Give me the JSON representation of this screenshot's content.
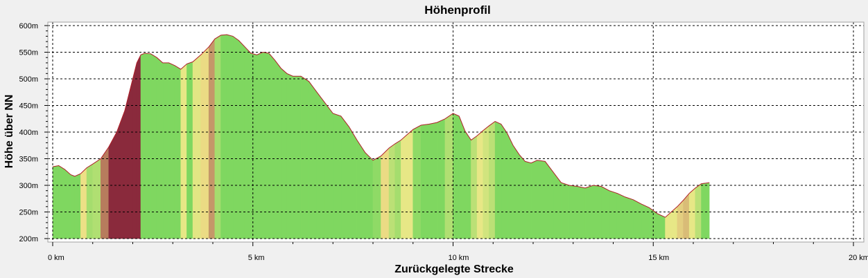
{
  "chart_data": {
    "type": "area",
    "title": "Höhenprofil",
    "xlabel": "Zurückgelegte Strecke",
    "ylabel": "Höhe über NN",
    "xlim": [
      0,
      20
    ],
    "ylim": [
      200,
      600
    ],
    "x_ticks": [
      0,
      5,
      10,
      15,
      20
    ],
    "x_tick_labels": [
      "0 km",
      "5 km",
      "10 km",
      "15 km",
      "20 km"
    ],
    "y_ticks": [
      200,
      250,
      300,
      350,
      400,
      450,
      500,
      550,
      600
    ],
    "y_tick_labels": [
      "200m",
      "250m",
      "300m",
      "350m",
      "400m",
      "450m",
      "500m",
      "550m",
      "600m"
    ],
    "grid": true,
    "colors": {
      "flat": "#7fd760",
      "moderate": "#f2e98a",
      "steep": "#8a2a3c",
      "line": "#b0202a",
      "plot_bg": "#ffffff",
      "grid": "#000000"
    },
    "series": [
      {
        "x": [
          0,
          0.15,
          0.3,
          0.45,
          0.55,
          0.7,
          0.85,
          1.0,
          1.2,
          1.4,
          1.6,
          1.8,
          2.0,
          2.1,
          2.2,
          2.3,
          2.45,
          2.6,
          2.75,
          2.9,
          3.05,
          3.2,
          3.35,
          3.5,
          3.7,
          3.9,
          4.05,
          4.2,
          4.35,
          4.5,
          4.65,
          4.8,
          4.95,
          5.1,
          5.25,
          5.4,
          5.55,
          5.7,
          5.85,
          6.0,
          6.2,
          6.4,
          6.6,
          6.8,
          7.0,
          7.2,
          7.4,
          7.6,
          7.8,
          8.0,
          8.2,
          8.4,
          8.55,
          8.7,
          8.85,
          9.0,
          9.2,
          9.4,
          9.6,
          9.8,
          10.0,
          10.15,
          10.3,
          10.45,
          10.6,
          10.75,
          10.9,
          11.05,
          11.2,
          11.35,
          11.5,
          11.65,
          11.8,
          11.95,
          12.1,
          12.3,
          12.5,
          12.7,
          12.9,
          13.1,
          13.3,
          13.5,
          13.7,
          13.9,
          14.1,
          14.3,
          14.5,
          14.7,
          14.9,
          15.1,
          15.3,
          15.45,
          15.6,
          15.75,
          15.9,
          16.05,
          16.2,
          16.4
        ],
        "y": [
          335,
          337,
          330,
          320,
          317,
          322,
          333,
          340,
          350,
          372,
          400,
          440,
          500,
          530,
          545,
          548,
          547,
          540,
          530,
          530,
          525,
          518,
          528,
          532,
          545,
          560,
          575,
          582,
          583,
          580,
          572,
          560,
          548,
          545,
          550,
          548,
          535,
          520,
          510,
          505,
          505,
          495,
          475,
          455,
          435,
          430,
          410,
          385,
          362,
          347,
          355,
          370,
          378,
          385,
          395,
          405,
          413,
          415,
          418,
          425,
          435,
          430,
          402,
          385,
          393,
          403,
          412,
          420,
          415,
          398,
          375,
          358,
          345,
          342,
          347,
          345,
          325,
          305,
          300,
          298,
          295,
          300,
          298,
          290,
          285,
          278,
          273,
          265,
          258,
          247,
          240,
          250,
          260,
          272,
          285,
          295,
          303,
          305
        ]
      }
    ]
  }
}
